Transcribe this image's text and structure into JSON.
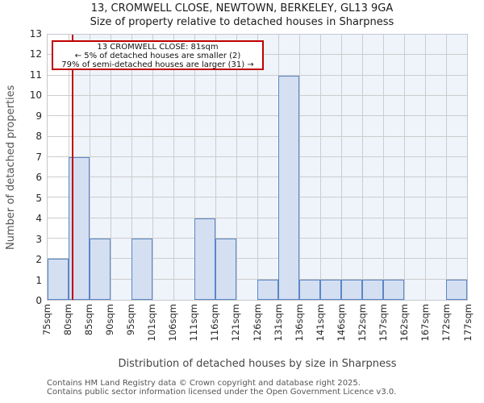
{
  "title": "13, CROMWELL CLOSE, NEWTOWN, BERKELEY, GL13 9GA",
  "subtitle": "Size of property relative to detached houses in Sharpness",
  "annotation": {
    "line1": "13 CROMWELL CLOSE: 81sqm",
    "line2": "← 5% of detached houses are smaller (2)",
    "line3": "79% of semi-detached houses are larger (31) →"
  },
  "chart_data": {
    "type": "bar",
    "title": "13, CROMWELL CLOSE, NEWTOWN, BERKELEY, GL13 9GA",
    "subtitle": "Size of property relative to detached houses in Sharpness",
    "xlabel": "Distribution of detached houses by size in Sharpness",
    "ylabel": "Number of detached properties",
    "ylim": [
      0,
      13
    ],
    "y_tick_step": 1,
    "grid": true,
    "legend": "none",
    "bin_edges_sqm": [
      75,
      80,
      85,
      90,
      95,
      101,
      106,
      111,
      116,
      121,
      126,
      131,
      136,
      141,
      146,
      152,
      157,
      162,
      167,
      172,
      177
    ],
    "categories": [
      "75sqm",
      "80sqm",
      "85sqm",
      "90sqm",
      "95sqm",
      "101sqm",
      "106sqm",
      "111sqm",
      "116sqm",
      "121sqm",
      "126sqm",
      "131sqm",
      "136sqm",
      "141sqm",
      "146sqm",
      "152sqm",
      "157sqm",
      "162sqm",
      "167sqm",
      "172sqm",
      "177sqm"
    ],
    "values": [
      2,
      7,
      3,
      0,
      3,
      0,
      0,
      4,
      3,
      0,
      1,
      11,
      1,
      1,
      1,
      1,
      1,
      0,
      0,
      1
    ],
    "marker": {
      "sqm": 81,
      "label": "13 CROMWELL CLOSE: 81sqm"
    },
    "colors": {
      "bar_fill": "#d4dff2",
      "bar_border": "#5b87c5",
      "marker_line": "#c00000",
      "annotation_border": "#c00000",
      "region_fill": "#eff4fb",
      "gridline": "#cccccc",
      "frame": "#c3c7cf"
    }
  },
  "footer": {
    "line1": "Contains HM Land Registry data © Crown copyright and database right 2025.",
    "line2": "Contains public sector information licensed under the Open Government Licence v3.0."
  }
}
